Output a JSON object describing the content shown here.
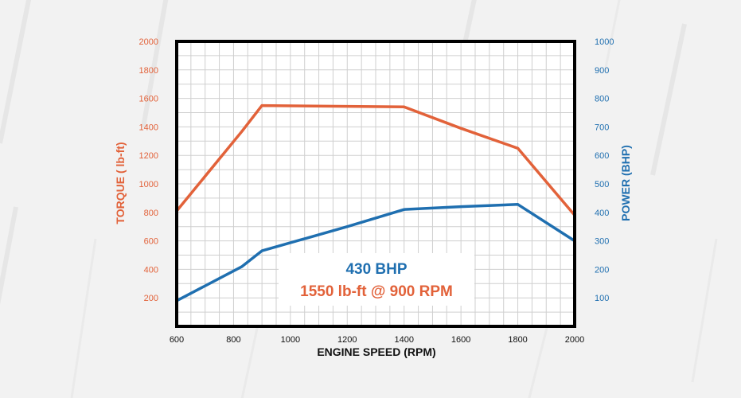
{
  "chart_data": {
    "type": "line",
    "xlabel": "ENGINE SPEED (RPM)",
    "ylabel_left": "TORQUE ( lb-ft)",
    "ylabel_right": "POWER (BHP)",
    "xlim": [
      600,
      2000
    ],
    "ylim_left": [
      0,
      2000
    ],
    "ylim_right": [
      0,
      1000
    ],
    "x_ticks": [
      600,
      800,
      1000,
      1200,
      1400,
      1600,
      1800,
      2000
    ],
    "y_ticks_left": [
      200,
      400,
      600,
      800,
      1000,
      1200,
      1400,
      1600,
      1800,
      2000
    ],
    "y_ticks_right": [
      100,
      200,
      300,
      400,
      500,
      600,
      700,
      800,
      900,
      1000
    ],
    "grid": true,
    "series": [
      {
        "name": "TORQUE ( lb-ft)",
        "axis": "left",
        "color": "#e2623a",
        "points": [
          [
            600,
            810
          ],
          [
            830,
            1370
          ],
          [
            900,
            1550
          ],
          [
            1400,
            1540
          ],
          [
            1600,
            1390
          ],
          [
            1800,
            1250
          ],
          [
            2000,
            780
          ]
        ]
      },
      {
        "name": "POWER (BHP)",
        "axis": "right",
        "color": "#1f6fb0",
        "points": [
          [
            600,
            90
          ],
          [
            830,
            210
          ],
          [
            900,
            265
          ],
          [
            1200,
            350
          ],
          [
            1400,
            410
          ],
          [
            1600,
            420
          ],
          [
            1800,
            428
          ],
          [
            2000,
            300
          ]
        ]
      }
    ],
    "annotation": {
      "line1": "430 BHP",
      "line2": "1550 lb-ft @ 900 RPM",
      "line1_color": "#1f6fb0",
      "line2_color": "#e2623a"
    },
    "colors": {
      "torque": "#e2623a",
      "power": "#1f6fb0",
      "frame": "#000000",
      "grid": "#cfcfcf"
    }
  }
}
